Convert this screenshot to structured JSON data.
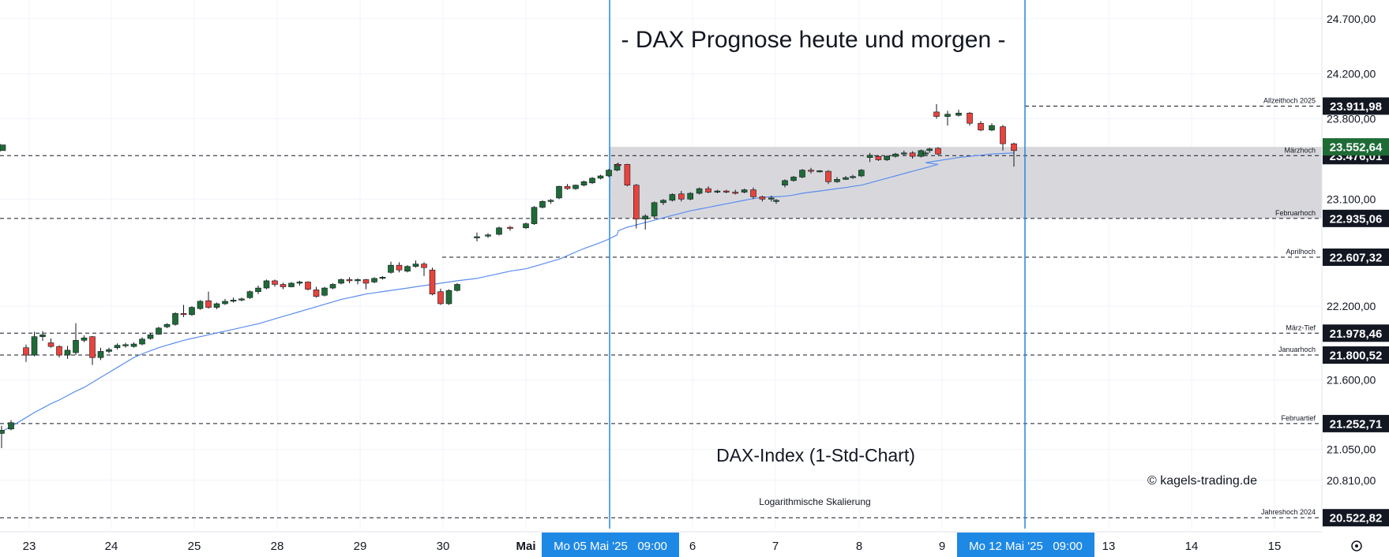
{
  "chart_data": {
    "type": "candlestick",
    "title": "- DAX Prognose heute und morgen -",
    "subtitle": "DAX-Index (1-Std-Chart)",
    "scale_note": "Logarithmische Skalierung",
    "copyright": "© kagels-trading.de",
    "price_axis": {
      "scale": "log",
      "range": [
        20440,
        24800
      ],
      "ticks": [
        {
          "value": 24700,
          "label": "24.700,00"
        },
        {
          "value": 24200,
          "label": "24.200,00"
        },
        {
          "value": 23800,
          "label": "23.800,00"
        },
        {
          "value": 23100,
          "label": "23.100,00"
        },
        {
          "value": 22200,
          "label": "22.200,00"
        },
        {
          "value": 21600,
          "label": "21.600,00"
        },
        {
          "value": 21050,
          "label": "21.050,00"
        },
        {
          "value": 20810,
          "label": "20.810,00"
        }
      ]
    },
    "time_axis": {
      "ticks": [
        {
          "label": "23",
          "bold": false
        },
        {
          "label": "24",
          "bold": false
        },
        {
          "label": "25",
          "bold": false
        },
        {
          "label": "28",
          "bold": false
        },
        {
          "label": "29",
          "bold": false
        },
        {
          "label": "30",
          "bold": false
        },
        {
          "label": "Mai",
          "bold": true
        },
        {
          "label": "6",
          "bold": false
        },
        {
          "label": "7",
          "bold": false
        },
        {
          "label": "8",
          "bold": false
        },
        {
          "label": "9",
          "bold": false
        },
        {
          "label": "13",
          "bold": false
        },
        {
          "label": "14",
          "bold": false
        },
        {
          "label": "15",
          "bold": false
        }
      ],
      "highlights": [
        {
          "label": "Mo 05 Mai '25   09:00"
        },
        {
          "label": "Mo 12 Mai '25   09:00"
        }
      ]
    },
    "levels": [
      {
        "name": "Allzeithoch 2025",
        "value": 23911.98,
        "label": "23.911,98",
        "color": "#131722"
      },
      {
        "name": "Märzhoch",
        "value": 23476.01,
        "label": "23.476,01",
        "color": "#131722"
      },
      {
        "name": "Februarhoch",
        "value": 22935.06,
        "label": "22.935,06",
        "color": "#131722"
      },
      {
        "name": "Aprilhoch",
        "value": 22607.32,
        "label": "22.607,32",
        "color": "#131722"
      },
      {
        "name": "März-Tief",
        "value": 21978.46,
        "label": "21.978,46",
        "color": "#131722"
      },
      {
        "name": "Januarhoch",
        "value": 21800.52,
        "label": "21.800,52",
        "color": "#131722"
      },
      {
        "name": "Februartief",
        "value": 21252.71,
        "label": "21.252,71",
        "color": "#131722"
      },
      {
        "name": "Jahreshoch 2024",
        "value": 20522.82,
        "label": "20.522,82",
        "color": "#131722"
      }
    ],
    "last_price": {
      "value": 23552.64,
      "label": "23.552,64",
      "color": "#1e6b36"
    },
    "zone": {
      "from": 22935.06,
      "to": 23552.64,
      "color": "#d1d1d6"
    },
    "colors": {
      "up": "#1e6b36",
      "down": "#e8433c",
      "ma": "#5b8def",
      "vline": "#2288dd",
      "hl_bg": "#1e88e5"
    },
    "candles": [
      [
        21175,
        21235,
        21060,
        21200
      ],
      [
        21210,
        21280,
        21200,
        21260
      ],
      [
        21860,
        21885,
        21745,
        21800
      ],
      [
        21800,
        21990,
        21790,
        21950
      ],
      [
        21950,
        21995,
        21915,
        21965
      ],
      [
        21900,
        21935,
        21860,
        21870
      ],
      [
        21870,
        21880,
        21780,
        21800
      ],
      [
        21800,
        21875,
        21770,
        21840
      ],
      [
        21820,
        22060,
        21800,
        21920
      ],
      [
        21920,
        21960,
        21905,
        21940
      ],
      [
        21950,
        21955,
        21720,
        21780
      ],
      [
        21780,
        21860,
        21760,
        21830
      ],
      [
        21830,
        21860,
        21815,
        21845
      ],
      [
        21860,
        21895,
        21845,
        21880
      ],
      [
        21880,
        21900,
        21860,
        21885
      ],
      [
        21870,
        21905,
        21860,
        21890
      ],
      [
        21890,
        21945,
        21880,
        21930
      ],
      [
        21935,
        21980,
        21925,
        21965
      ],
      [
        21970,
        22030,
        21965,
        22020
      ],
      [
        22030,
        22060,
        22020,
        22050
      ],
      [
        22050,
        22150,
        22040,
        22140
      ],
      [
        22140,
        22210,
        22110,
        22130
      ],
      [
        22130,
        22200,
        22120,
        22190
      ],
      [
        22180,
        22250,
        22170,
        22240
      ],
      [
        22245,
        22320,
        22180,
        22190
      ],
      [
        22190,
        22230,
        22175,
        22220
      ],
      [
        22220,
        22260,
        22210,
        22240
      ],
      [
        22245,
        22270,
        22230,
        22250
      ],
      [
        22250,
        22270,
        22240,
        22260
      ],
      [
        22270,
        22330,
        22260,
        22320
      ],
      [
        22320,
        22370,
        22300,
        22350
      ],
      [
        22350,
        22420,
        22340,
        22410
      ],
      [
        22410,
        22420,
        22360,
        22380
      ],
      [
        22380,
        22395,
        22340,
        22360
      ],
      [
        22360,
        22400,
        22355,
        22390
      ],
      [
        22390,
        22410,
        22370,
        22400
      ],
      [
        22400,
        22405,
        22330,
        22340
      ],
      [
        22335,
        22360,
        22270,
        22280
      ],
      [
        22290,
        22360,
        22280,
        22350
      ],
      [
        22350,
        22390,
        22340,
        22380
      ],
      [
        22390,
        22430,
        22380,
        22420
      ],
      [
        22420,
        22440,
        22390,
        22410
      ],
      [
        22410,
        22430,
        22380,
        22420
      ],
      [
        22420,
        22425,
        22340,
        22390
      ],
      [
        22400,
        22440,
        22390,
        22430
      ],
      [
        22430,
        22450,
        22420,
        22440
      ],
      [
        22480,
        22570,
        22470,
        22540
      ],
      [
        22540,
        22565,
        22480,
        22500
      ],
      [
        22490,
        22540,
        22480,
        22530
      ],
      [
        22530,
        22580,
        22520,
        22550
      ],
      [
        22550,
        22565,
        22450,
        22520
      ],
      [
        22500,
        22520,
        22290,
        22300
      ],
      [
        22320,
        22345,
        22210,
        22220
      ],
      [
        22220,
        22340,
        22210,
        22330
      ],
      [
        22330,
        22390,
        22320,
        22380
      ],
      [
        22780,
        22815,
        22740,
        22780
      ],
      [
        22790,
        22810,
        22770,
        22795
      ],
      [
        22800,
        22865,
        22790,
        22855
      ],
      [
        22860,
        22870,
        22830,
        22850
      ],
      [
        22855,
        22900,
        22845,
        22890
      ],
      [
        22890,
        23040,
        22880,
        23030
      ],
      [
        23030,
        23090,
        23020,
        23080
      ],
      [
        23080,
        23100,
        23060,
        23090
      ],
      [
        23110,
        23215,
        23100,
        23210
      ],
      [
        23210,
        23230,
        23180,
        23190
      ],
      [
        23190,
        23225,
        23180,
        23220
      ],
      [
        23220,
        23260,
        23210,
        23250
      ],
      [
        23240,
        23290,
        23230,
        23280
      ],
      [
        23280,
        23310,
        23270,
        23300
      ],
      [
        23300,
        23360,
        23290,
        23350
      ],
      [
        23350,
        23410,
        23340,
        23400
      ],
      [
        23400,
        23415,
        23390,
        23395
      ],
      [
        23400,
        23405,
        23210,
        23220
      ],
      [
        23220,
        23230,
        22850,
        22930
      ],
      [
        22930,
        22970,
        22840,
        22955
      ],
      [
        22955,
        23080,
        22940,
        23070
      ],
      [
        23070,
        23100,
        23050,
        23090
      ],
      [
        23090,
        23150,
        23080,
        23140
      ],
      [
        23145,
        23170,
        23080,
        23100
      ],
      [
        23100,
        23160,
        23090,
        23150
      ],
      [
        23150,
        23200,
        23140,
        23190
      ],
      [
        23190,
        23210,
        23150,
        23160
      ],
      [
        23160,
        23180,
        23150,
        23170
      ],
      [
        23170,
        23180,
        23150,
        23160
      ],
      [
        23160,
        23180,
        23140,
        23150
      ],
      [
        23160,
        23190,
        23150,
        23180
      ],
      [
        23180,
        23200,
        23100,
        23120
      ],
      [
        23120,
        23130,
        23080,
        23100
      ],
      [
        23100,
        23130,
        23080,
        23110
      ],
      [
        23080,
        23100,
        23060,
        23090
      ],
      [
        23220,
        23270,
        23200,
        23260
      ],
      [
        23260,
        23300,
        23250,
        23290
      ],
      [
        23290,
        23360,
        23280,
        23350
      ],
      [
        23350,
        23370,
        23320,
        23340
      ],
      [
        23340,
        23350,
        23330,
        23345
      ],
      [
        23340,
        23350,
        23230,
        23250
      ],
      [
        23250,
        23290,
        23240,
        23270
      ],
      [
        23270,
        23300,
        23265,
        23285
      ],
      [
        23285,
        23310,
        23275,
        23295
      ],
      [
        23300,
        23360,
        23290,
        23350
      ],
      [
        23460,
        23500,
        23420,
        23480
      ],
      [
        23470,
        23480,
        23430,
        23440
      ],
      [
        23440,
        23480,
        23430,
        23470
      ],
      [
        23470,
        23500,
        23460,
        23490
      ],
      [
        23490,
        23520,
        23480,
        23500
      ],
      [
        23500,
        23515,
        23450,
        23470
      ],
      [
        23470,
        23530,
        23460,
        23520
      ],
      [
        23520,
        23545,
        23500,
        23535
      ],
      [
        23540,
        23550,
        23480,
        23490
      ],
      [
        23490,
        23520,
        23480,
        23500
      ],
      [
        23860,
        23930,
        23800,
        23820
      ],
      [
        23820,
        23870,
        23740,
        23840
      ],
      [
        23830,
        23880,
        23820,
        23850
      ],
      [
        23850,
        23860,
        23740,
        23760
      ],
      [
        23760,
        23780,
        23690,
        23700
      ],
      [
        23700,
        23760,
        23690,
        23740
      ],
      [
        23730,
        23745,
        23520,
        23580
      ],
      [
        23580,
        23590,
        23380,
        23520
      ],
      [
        23520,
        23580,
        23510,
        23570
      ]
    ],
    "ma": [
      21190,
      21230,
      21300,
      21340,
      21375,
      21410,
      21440,
      21475,
      21510,
      21540,
      21580,
      21620,
      21660,
      21700,
      21740,
      21780,
      21810,
      21835,
      21860,
      21880,
      21900,
      21920,
      21935,
      21950,
      21965,
      21980,
      21995,
      22010,
      22025,
      22040,
      22055,
      22075,
      22095,
      22115,
      22135,
      22155,
      22175,
      22195,
      22215,
      22235,
      22255,
      22270,
      22285,
      22300,
      22310,
      22320,
      22330,
      22340,
      22350,
      22360,
      22370,
      22380,
      22390,
      22400,
      22410,
      22430,
      22450,
      22470,
      22490,
      22510,
      22530,
      22550,
      22570,
      22590,
      22620,
      22650,
      22680,
      22705,
      22730,
      22760,
      22795,
      22830,
      22860,
      22880,
      22900,
      22920,
      22940,
      22960,
      22980,
      23000,
      23015,
      23030,
      23045,
      23060,
      23075,
      23090,
      23105,
      23115,
      23120,
      23120,
      23125,
      23135,
      23150,
      23160,
      23170,
      23180,
      23190,
      23200,
      23210,
      23220,
      23240,
      23260,
      23280,
      23300,
      23320,
      23340,
      23360,
      23380,
      23400,
      23415,
      23430,
      23445,
      23460,
      23470,
      23480,
      23490,
      23495,
      23500,
      23500
    ]
  }
}
